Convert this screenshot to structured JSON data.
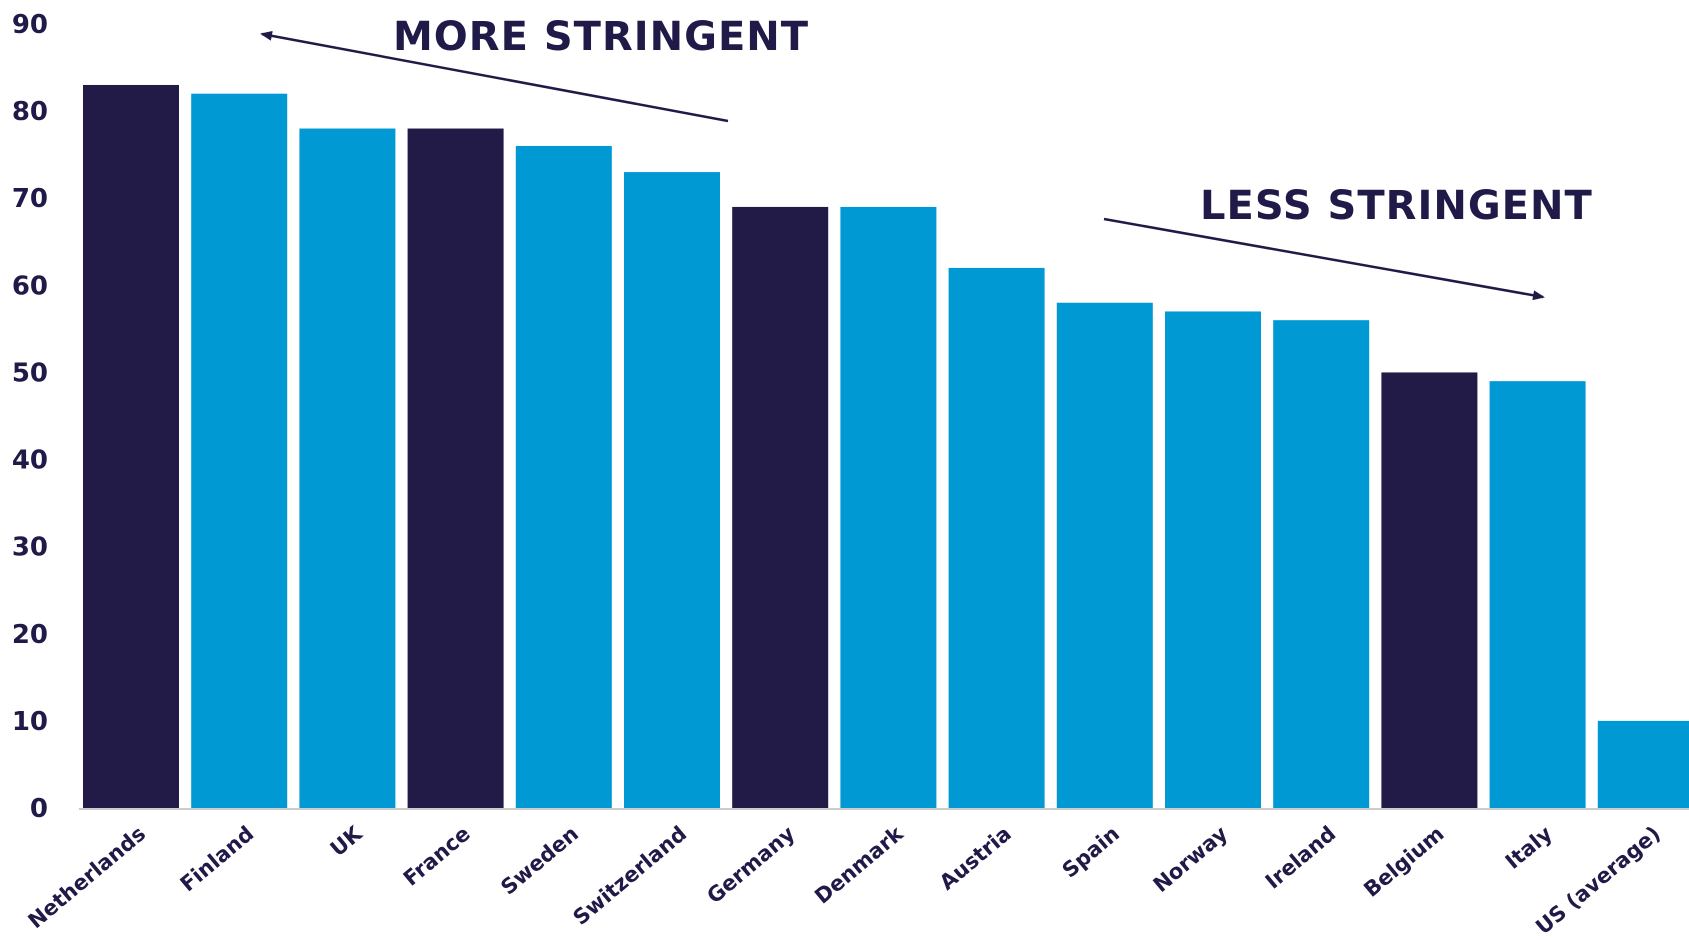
{
  "chart_data": {
    "type": "bar",
    "title": "",
    "xlabel": "",
    "ylabel": "",
    "ylim": [
      0,
      90
    ],
    "yticks": [
      0,
      10,
      20,
      30,
      40,
      50,
      60,
      70,
      80,
      90
    ],
    "grid": false,
    "categories": [
      "Netherlands",
      "Finland",
      "UK",
      "France",
      "Sweden",
      "Switzerland",
      "Germany",
      "Denmark",
      "Austria",
      "Spain",
      "Norway",
      "Ireland",
      "Belgium",
      "Italy",
      "US (average)"
    ],
    "values": [
      83,
      82,
      78,
      78,
      76,
      73,
      69,
      69,
      62,
      58,
      57,
      56,
      50,
      49,
      10
    ],
    "highlighted": [
      true,
      false,
      false,
      true,
      false,
      false,
      true,
      false,
      false,
      false,
      false,
      false,
      true,
      false,
      false
    ],
    "colors": {
      "highlight": "#221a47",
      "default": "#0099d4",
      "text": "#1f1a47",
      "axis": "#cccccc"
    },
    "annotations": [
      {
        "text": "MORE STRINGENT",
        "arrow": "up-left"
      },
      {
        "text": "LESS STRINGENT",
        "arrow": "down-right"
      }
    ]
  }
}
